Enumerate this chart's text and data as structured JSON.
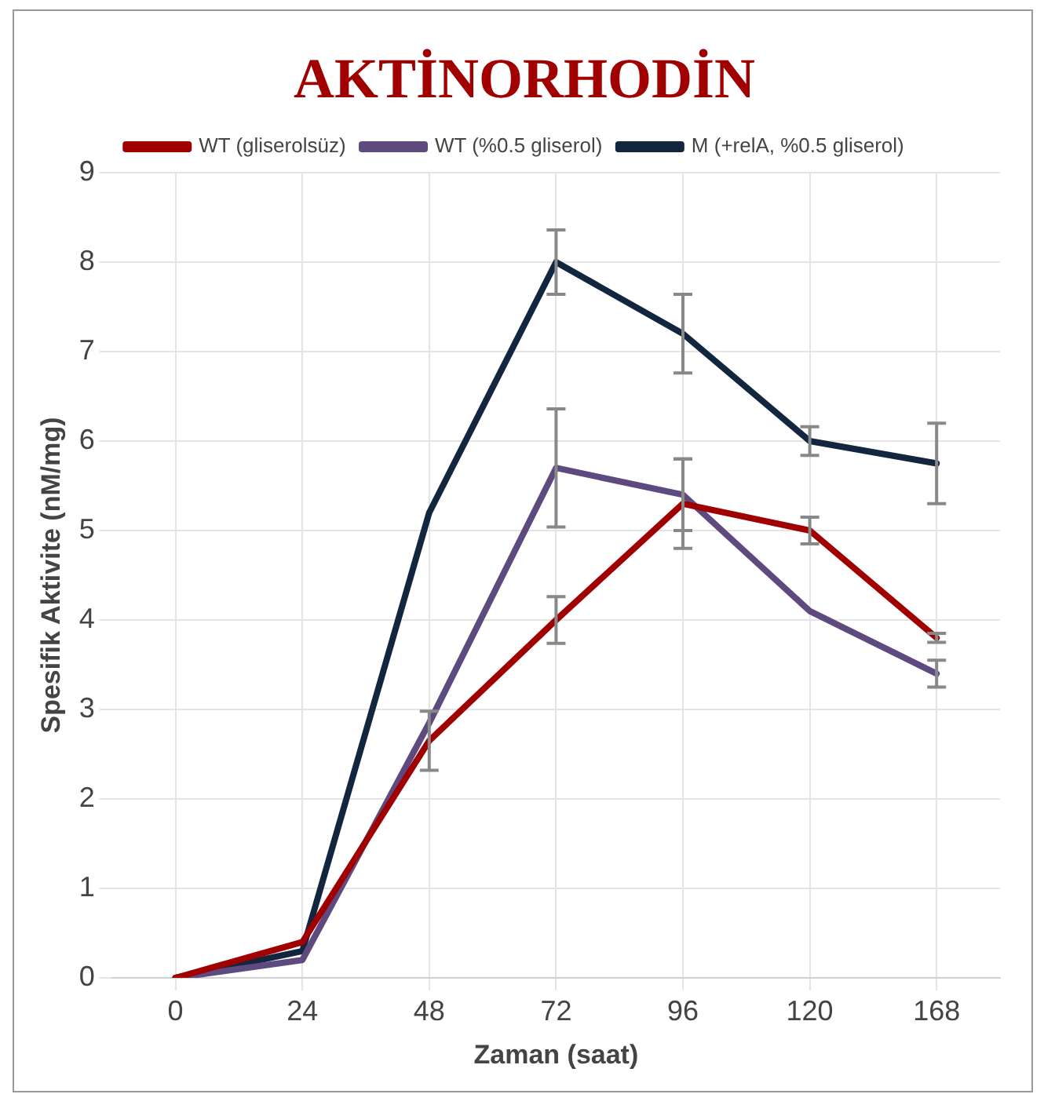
{
  "chart_data": {
    "type": "line",
    "title": "AKTİNORHODİN",
    "xlabel": "Zaman (saat)",
    "ylabel": "Spesifik Aktivite (nM/mg)",
    "categories": [
      "0",
      "24",
      "48",
      "72",
      "96",
      "120",
      "168"
    ],
    "series": [
      {
        "name": "WT (gliserolsüz)",
        "color": "#a00000",
        "values": [
          0,
          0.4,
          2.65,
          4.0,
          5.3,
          5.0,
          3.8
        ],
        "errors": [
          null,
          null,
          0.33,
          0.26,
          0.5,
          0.15,
          0.05
        ]
      },
      {
        "name": "WT (%0.5 gliserol)",
        "color": "#5e4a7e",
        "values": [
          0,
          0.2,
          2.85,
          5.7,
          5.4,
          4.1,
          3.4
        ],
        "errors": [
          null,
          null,
          null,
          0.66,
          0.4,
          null,
          0.15
        ]
      },
      {
        "name": "M (+relA, %0.5 gliserol)",
        "color": "#12263f",
        "values": [
          0,
          0.3,
          5.2,
          8.0,
          7.2,
          6.0,
          5.75
        ],
        "errors": [
          null,
          null,
          null,
          0.36,
          0.44,
          0.16,
          0.45
        ]
      }
    ],
    "ylim": [
      0,
      9
    ],
    "yticks": [
      0,
      1,
      2,
      3,
      4,
      5,
      6,
      7,
      8,
      9
    ],
    "grid": true,
    "legend": "top",
    "marker": "none",
    "line_style": "solid"
  }
}
